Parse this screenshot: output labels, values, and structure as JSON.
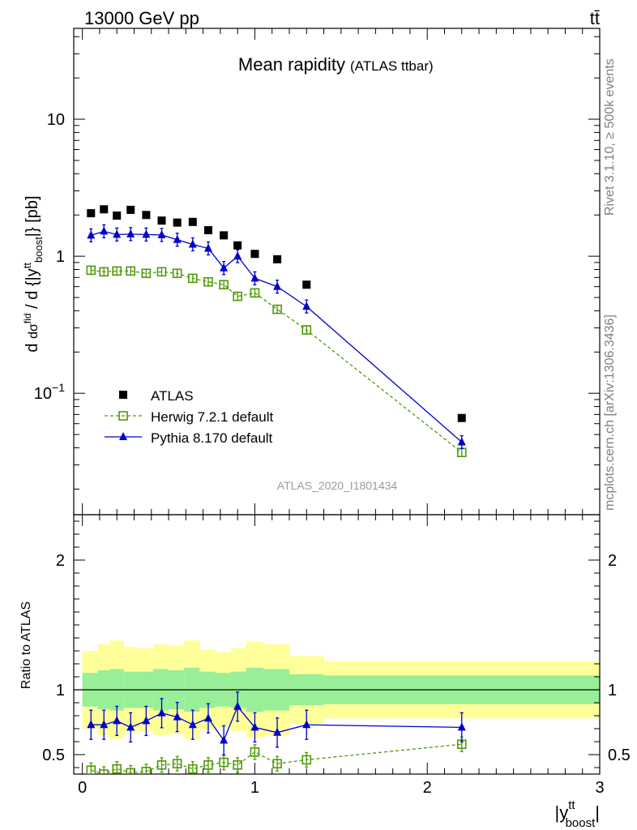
{
  "header": {
    "left": "13000 GeV pp",
    "right": "tt̄"
  },
  "side_labels": {
    "top": "Rivet 3.1.10, ≥ 500k events",
    "bottom": "mcplots.cern.ch [arXiv:1306.3436]"
  },
  "chart_data": [
    {
      "type": "scatter",
      "title": "Mean rapidity",
      "subtitle": "(ATLAS ttbar)",
      "watermark": "ATLAS_2020_I1801434",
      "ylabel": "d dσ^nd / d {|y^tt_boost|} [pb]",
      "y_scale": "log",
      "ylim": [
        0.013,
        46
      ],
      "y_tick_labels": [
        "10^-1",
        "1",
        "10"
      ],
      "xlim": [
        -0.05,
        3.0
      ],
      "legend_position": "bottom-left",
      "series": [
        {
          "name": "ATLAS",
          "color": "#000000",
          "marker": "filled-square",
          "x": [
            0.05,
            0.125,
            0.2,
            0.28,
            0.37,
            0.46,
            0.55,
            0.64,
            0.73,
            0.82,
            0.9,
            1.0,
            1.13,
            1.3,
            2.2
          ],
          "y": [
            2.06,
            2.2,
            1.98,
            2.18,
            2.0,
            1.82,
            1.76,
            1.78,
            1.55,
            1.42,
            1.2,
            1.04,
            0.95,
            0.62,
            0.066
          ]
        },
        {
          "name": "Herwig 7.2.1 default",
          "color": "#4e9a06",
          "marker": "open-square",
          "line": "dashed",
          "x": [
            0.05,
            0.125,
            0.2,
            0.28,
            0.37,
            0.46,
            0.55,
            0.64,
            0.73,
            0.82,
            0.9,
            1.0,
            1.13,
            1.3,
            2.2
          ],
          "y": [
            0.79,
            0.77,
            0.78,
            0.78,
            0.75,
            0.77,
            0.75,
            0.69,
            0.65,
            0.62,
            0.51,
            0.54,
            0.41,
            0.29,
            0.037
          ]
        },
        {
          "name": "Pythia 8.170 default",
          "color": "#0000cc",
          "marker": "filled-triangle",
          "line": "solid",
          "x": [
            0.05,
            0.125,
            0.2,
            0.28,
            0.37,
            0.46,
            0.55,
            0.64,
            0.73,
            0.82,
            0.9,
            1.0,
            1.13,
            1.3,
            2.2
          ],
          "y": [
            1.42,
            1.52,
            1.44,
            1.45,
            1.44,
            1.43,
            1.32,
            1.22,
            1.14,
            0.82,
            1.0,
            0.69,
            0.6,
            0.43,
            0.044
          ]
        }
      ]
    },
    {
      "type": "scatter",
      "ylabel": "Ratio to ATLAS",
      "xlabel": "|y^tt_boost|",
      "ylim": [
        0.35,
        2.35
      ],
      "y_tick_labels": [
        "0.5",
        "1",
        "2"
      ],
      "xlim": [
        -0.05,
        3.0
      ],
      "x_tick_labels": [
        "0",
        "1",
        "2",
        "3"
      ],
      "bands": {
        "inner_color": "#99ee99",
        "outer_color": "#ffff99",
        "edges": [
          0.0,
          0.09,
          0.16,
          0.24,
          0.32,
          0.41,
          0.5,
          0.59,
          0.68,
          0.77,
          0.86,
          0.95,
          1.05,
          1.2,
          1.4,
          3.0
        ],
        "inner": [
          [
            0.87,
            1.13
          ],
          [
            0.85,
            1.15
          ],
          [
            0.84,
            1.16
          ],
          [
            0.86,
            1.14
          ],
          [
            0.86,
            1.14
          ],
          [
            0.84,
            1.16
          ],
          [
            0.85,
            1.15
          ],
          [
            0.83,
            1.17
          ],
          [
            0.86,
            1.14
          ],
          [
            0.87,
            1.13
          ],
          [
            0.86,
            1.14
          ],
          [
            0.83,
            1.17
          ],
          [
            0.84,
            1.16
          ],
          [
            0.88,
            1.12
          ],
          [
            0.89,
            1.11
          ]
        ],
        "outer": [
          [
            0.7,
            1.3
          ],
          [
            0.65,
            1.35
          ],
          [
            0.62,
            1.38
          ],
          [
            0.67,
            1.33
          ],
          [
            0.68,
            1.32
          ],
          [
            0.65,
            1.35
          ],
          [
            0.66,
            1.34
          ],
          [
            0.62,
            1.38
          ],
          [
            0.69,
            1.31
          ],
          [
            0.71,
            1.29
          ],
          [
            0.68,
            1.32
          ],
          [
            0.63,
            1.37
          ],
          [
            0.65,
            1.35
          ],
          [
            0.74,
            1.26
          ],
          [
            0.78,
            1.22
          ]
        ]
      },
      "series": [
        {
          "name": "Herwig 7.2.1 default",
          "color": "#4e9a06",
          "marker": "open-square",
          "line": "dashed",
          "x": [
            0.05,
            0.125,
            0.2,
            0.28,
            0.37,
            0.46,
            0.55,
            0.64,
            0.73,
            0.82,
            0.9,
            1.0,
            1.13,
            1.3,
            2.2
          ],
          "y": [
            0.38,
            0.35,
            0.39,
            0.36,
            0.37,
            0.42,
            0.43,
            0.39,
            0.42,
            0.44,
            0.42,
            0.52,
            0.43,
            0.46,
            0.58
          ]
        },
        {
          "name": "Pythia 8.170 default",
          "color": "#0000cc",
          "marker": "filled-triangle",
          "line": "solid",
          "x": [
            0.05,
            0.125,
            0.2,
            0.28,
            0.37,
            0.46,
            0.55,
            0.64,
            0.73,
            0.82,
            0.9,
            1.0,
            1.13,
            1.3,
            2.2
          ],
          "y": [
            0.73,
            0.73,
            0.76,
            0.71,
            0.76,
            0.82,
            0.79,
            0.73,
            0.78,
            0.61,
            0.87,
            0.71,
            0.67,
            0.73,
            0.71
          ]
        }
      ]
    }
  ]
}
